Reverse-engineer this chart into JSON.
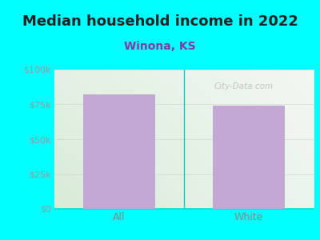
{
  "title": "Median household income in 2022",
  "subtitle": "Winona, KS",
  "subtitle_color": "#7B3FA0",
  "categories": [
    "All",
    "White"
  ],
  "values": [
    82000,
    74000
  ],
  "bar_color": "#C4A8D4",
  "ylim": [
    0,
    100000
  ],
  "yticks": [
    0,
    25000,
    50000,
    75000,
    100000
  ],
  "ytick_labels": [
    "$0",
    "$25k",
    "$50k",
    "$75k",
    "$100k"
  ],
  "outer_bg": "#00FFFF",
  "watermark": "City-Data.com",
  "title_fontsize": 13,
  "subtitle_fontsize": 10,
  "tick_color": "#999999",
  "xtick_color": "#888888",
  "divider_color": "#00CCCC",
  "bottom_spine_color": "#00DDDD"
}
